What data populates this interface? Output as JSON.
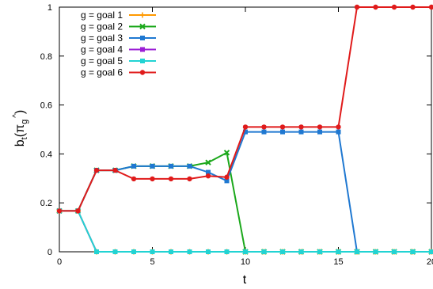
{
  "chart_data": {
    "type": "line",
    "xlabel": "t",
    "ylabel": "b",
    "ylabel_sub": "t",
    "ylabel_arg": "(π",
    "ylabel_arg_sub": "g",
    "ylabel_arg_sup": "^",
    "ylabel_close": ")",
    "xlim": [
      0,
      20
    ],
    "ylim": [
      0,
      1
    ],
    "xticks": [
      "0",
      "5",
      "10",
      "15",
      "20"
    ],
    "yticks": [
      "0",
      "0.2",
      "0.4",
      "0.6",
      "0.8",
      "1"
    ],
    "x": [
      0,
      1,
      2,
      3,
      4,
      5,
      6,
      7,
      8,
      9,
      10,
      11,
      12,
      13,
      14,
      15,
      16,
      17,
      18,
      19,
      20
    ],
    "legend_position": "top-left",
    "series": [
      {
        "name": "g = goal 1",
        "color": "#ff9900",
        "marker": "plus",
        "values": [
          0.167,
          0.167,
          0,
          0,
          0,
          0,
          0,
          0,
          0,
          0,
          0,
          0,
          0,
          0,
          0,
          0,
          0,
          0,
          0,
          0,
          0
        ]
      },
      {
        "name": "g = goal 2",
        "color": "#1ba81b",
        "marker": "cross",
        "values": [
          0.167,
          0.167,
          0.333,
          0.333,
          0.35,
          0.35,
          0.35,
          0.35,
          0.365,
          0.405,
          0,
          0,
          0,
          0,
          0,
          0,
          0,
          0,
          0,
          0,
          0
        ]
      },
      {
        "name": "g = goal 3",
        "color": "#1f78d1",
        "marker": "square",
        "values": [
          0.167,
          0.167,
          0.333,
          0.333,
          0.35,
          0.35,
          0.35,
          0.35,
          0.325,
          0.29,
          0.49,
          0.49,
          0.49,
          0.49,
          0.49,
          0.49,
          0,
          0,
          0,
          0,
          0
        ]
      },
      {
        "name": "g = goal 4",
        "color": "#9b1fd6",
        "marker": "square",
        "values": [
          0.167,
          0.167,
          0,
          0,
          0,
          0,
          0,
          0,
          0,
          0,
          0,
          0,
          0,
          0,
          0,
          0,
          0,
          0,
          0,
          0,
          0
        ]
      },
      {
        "name": "g = goal 5",
        "color": "#22d3d3",
        "marker": "square",
        "values": [
          0.167,
          0.167,
          0,
          0,
          0,
          0,
          0,
          0,
          0,
          0,
          0,
          0,
          0,
          0,
          0,
          0,
          0,
          0,
          0,
          0,
          0
        ]
      },
      {
        "name": "g = goal 6",
        "color": "#e01b1b",
        "marker": "circle",
        "values": [
          0.167,
          0.167,
          0.333,
          0.333,
          0.298,
          0.298,
          0.298,
          0.298,
          0.31,
          0.305,
          0.51,
          0.51,
          0.51,
          0.51,
          0.51,
          0.51,
          1,
          1,
          1,
          1,
          1
        ]
      }
    ]
  }
}
